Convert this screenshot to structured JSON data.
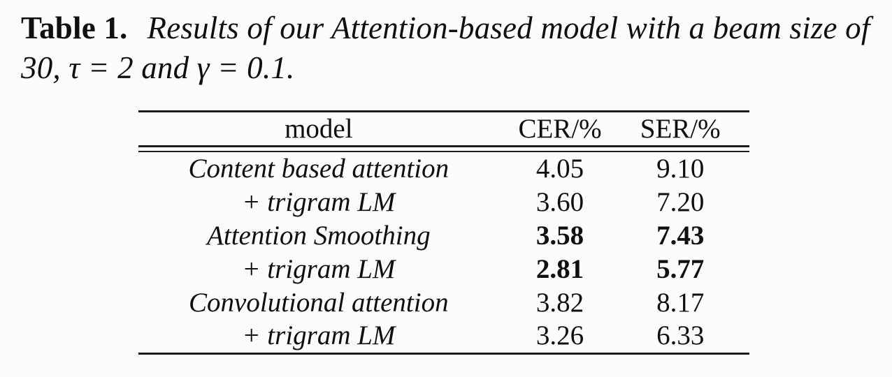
{
  "caption": {
    "label": "Table 1.",
    "text": "Results of our Attention-based model with a beam size of 30, τ = 2 and γ = 0.1."
  },
  "table": {
    "headers": [
      "model",
      "CER/%",
      "SER/%"
    ],
    "rows": [
      {
        "model": "Content based attention",
        "cer": "4.05",
        "ser": "9.10",
        "bold": false
      },
      {
        "model": "+ trigram LM",
        "cer": "3.60",
        "ser": "7.20",
        "bold": false
      },
      {
        "model": "Attention Smoothing",
        "cer": "3.58",
        "ser": "7.43",
        "bold": true
      },
      {
        "model": "+ trigram LM",
        "cer": "2.81",
        "ser": "5.77",
        "bold": true
      },
      {
        "model": "Convolutional attention",
        "cer": "3.82",
        "ser": "8.17",
        "bold": false
      },
      {
        "model": "+ trigram LM",
        "cer": "3.26",
        "ser": "6.33",
        "bold": false
      }
    ]
  },
  "colors": {
    "text": "#0f0f0f",
    "background": "#fcfcfc",
    "rule": "#1c1c1c"
  }
}
